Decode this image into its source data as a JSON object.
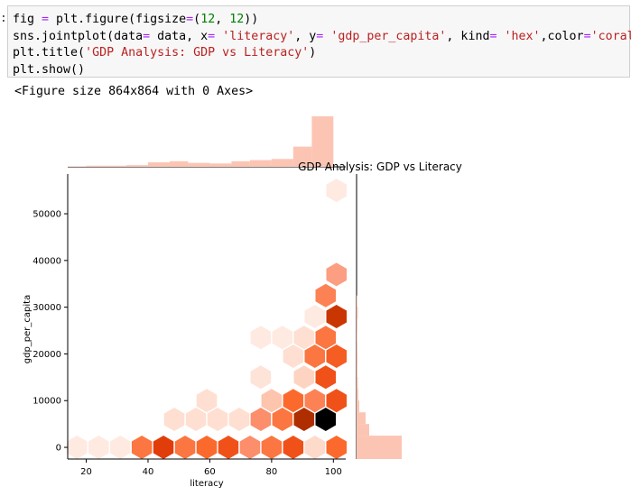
{
  "cell": {
    "prompt": ":",
    "lines": [
      [
        {
          "t": "fig ",
          "c": "k"
        },
        {
          "t": "=",
          "c": "o"
        },
        {
          "t": " plt.figure(figsize",
          "c": "k"
        },
        {
          "t": "=",
          "c": "o"
        },
        {
          "t": "(",
          "c": "k"
        },
        {
          "t": "12",
          "c": "n"
        },
        {
          "t": ", ",
          "c": "k"
        },
        {
          "t": "12",
          "c": "n"
        },
        {
          "t": "))",
          "c": "k"
        }
      ],
      [
        {
          "t": "sns.jointplot(data",
          "c": "k"
        },
        {
          "t": "=",
          "c": "o"
        },
        {
          "t": " data, x",
          "c": "k"
        },
        {
          "t": "=",
          "c": "o"
        },
        {
          "t": " ",
          "c": "k"
        },
        {
          "t": "'literacy'",
          "c": "s"
        },
        {
          "t": ", y",
          "c": "k"
        },
        {
          "t": "=",
          "c": "o"
        },
        {
          "t": " ",
          "c": "k"
        },
        {
          "t": "'gdp_per_capita'",
          "c": "s"
        },
        {
          "t": ", kind",
          "c": "k"
        },
        {
          "t": "=",
          "c": "o"
        },
        {
          "t": " ",
          "c": "k"
        },
        {
          "t": "'hex'",
          "c": "s"
        },
        {
          "t": ",color",
          "c": "k"
        },
        {
          "t": "=",
          "c": "o"
        },
        {
          "t": "'coral'",
          "c": "s"
        },
        {
          "t": ")",
          "c": "k"
        }
      ],
      [
        {
          "t": "plt.title(",
          "c": "k"
        },
        {
          "t": "'GDP Analysis: GDP vs Literacy'",
          "c": "s"
        },
        {
          "t": ")",
          "c": "k"
        }
      ],
      [
        {
          "t": "plt.show()",
          "c": "k"
        }
      ]
    ]
  },
  "output_text": "<Figure size 864x864 with 0 Axes>",
  "chart_data": {
    "type": "hexbin",
    "title": "GDP Analysis: GDP vs Literacy",
    "xlabel": "literacy",
    "ylabel": "gdp_per_capita",
    "xlim": [
      14,
      104
    ],
    "ylim": [
      -2500,
      58500
    ],
    "xticks": [
      20,
      40,
      60,
      80,
      100
    ],
    "yticks": [
      0,
      10000,
      20000,
      30000,
      40000,
      50000
    ],
    "colors": {
      "scale": [
        "#fff5f0",
        "#fdd0bd",
        "#fc9272",
        "#fb6a2c",
        "#e8400c",
        "#c23300",
        "#000000"
      ],
      "marginal": "#fcc5b3"
    },
    "hexbins": [
      {
        "x": 17,
        "y": 0,
        "level": 0.05
      },
      {
        "x": 24,
        "y": 0,
        "level": 0.05
      },
      {
        "x": 31,
        "y": 0,
        "level": 0.05
      },
      {
        "x": 38,
        "y": 0,
        "level": 0.45
      },
      {
        "x": 45,
        "y": 0,
        "level": 0.7
      },
      {
        "x": 52,
        "y": 0,
        "level": 0.45
      },
      {
        "x": 59,
        "y": 0,
        "level": 0.5
      },
      {
        "x": 66,
        "y": 0,
        "level": 0.6
      },
      {
        "x": 73,
        "y": 0,
        "level": 0.35
      },
      {
        "x": 80,
        "y": 0,
        "level": 0.45
      },
      {
        "x": 87,
        "y": 0,
        "level": 0.6
      },
      {
        "x": 94,
        "y": 0,
        "level": 0.12
      },
      {
        "x": 101,
        "y": 0,
        "level": 0.5
      },
      {
        "x": 48.5,
        "y": 6000,
        "level": 0.1
      },
      {
        "x": 55.5,
        "y": 6000,
        "level": 0.1
      },
      {
        "x": 62.5,
        "y": 6000,
        "level": 0.1
      },
      {
        "x": 69.5,
        "y": 6000,
        "level": 0.1
      },
      {
        "x": 76.5,
        "y": 6000,
        "level": 0.35
      },
      {
        "x": 83.5,
        "y": 6000,
        "level": 0.45
      },
      {
        "x": 90.5,
        "y": 6000,
        "level": 0.85
      },
      {
        "x": 97.5,
        "y": 6000,
        "level": 1.0
      },
      {
        "x": 59,
        "y": 10000,
        "level": 0.1
      },
      {
        "x": 80,
        "y": 10000,
        "level": 0.2
      },
      {
        "x": 87,
        "y": 10000,
        "level": 0.5
      },
      {
        "x": 94,
        "y": 10000,
        "level": 0.4
      },
      {
        "x": 101,
        "y": 10000,
        "level": 0.6
      },
      {
        "x": 76.5,
        "y": 15000,
        "level": 0.08
      },
      {
        "x": 90.5,
        "y": 15000,
        "level": 0.15
      },
      {
        "x": 97.5,
        "y": 15000,
        "level": 0.6
      },
      {
        "x": 87,
        "y": 19500,
        "level": 0.1
      },
      {
        "x": 94,
        "y": 19500,
        "level": 0.45
      },
      {
        "x": 101,
        "y": 19500,
        "level": 0.55
      },
      {
        "x": 76.5,
        "y": 23500,
        "level": 0.05
      },
      {
        "x": 83.5,
        "y": 23500,
        "level": 0.05
      },
      {
        "x": 90.5,
        "y": 23500,
        "level": 0.1
      },
      {
        "x": 97.5,
        "y": 23500,
        "level": 0.45
      },
      {
        "x": 94,
        "y": 28000,
        "level": 0.05
      },
      {
        "x": 101,
        "y": 28000,
        "level": 0.8
      },
      {
        "x": 97.5,
        "y": 32500,
        "level": 0.4
      },
      {
        "x": 101,
        "y": 37000,
        "level": 0.3
      },
      {
        "x": 101,
        "y": 55000,
        "level": 0.05
      }
    ],
    "marginal_x": {
      "bins": [
        [
          14,
          20,
          0.005
        ],
        [
          20,
          27,
          0.01
        ],
        [
          27,
          33,
          0.01
        ],
        [
          33,
          40,
          0.015
        ],
        [
          40,
          47,
          0.04
        ],
        [
          47,
          53,
          0.05
        ],
        [
          53,
          60,
          0.035
        ],
        [
          60,
          67,
          0.03
        ],
        [
          67,
          73,
          0.05
        ],
        [
          73,
          80,
          0.06
        ],
        [
          80,
          87,
          0.07
        ],
        [
          87,
          93,
          0.18
        ],
        [
          93,
          100,
          0.45
        ]
      ]
    },
    "marginal_y": {
      "bins": [
        [
          -2500,
          2500,
          0.5
        ],
        [
          2500,
          5000,
          0.14
        ],
        [
          5000,
          7500,
          0.1
        ],
        [
          7500,
          10000,
          0.03
        ],
        [
          10000,
          12500,
          0.02
        ],
        [
          12500,
          15000,
          0.015
        ],
        [
          15000,
          17500,
          0.01
        ],
        [
          17500,
          20000,
          0.012
        ],
        [
          20000,
          22500,
          0.01
        ],
        [
          22500,
          25000,
          0.008
        ],
        [
          25000,
          27500,
          0.01
        ],
        [
          27500,
          30000,
          0.015
        ],
        [
          30000,
          32500,
          0.008
        ]
      ]
    }
  }
}
